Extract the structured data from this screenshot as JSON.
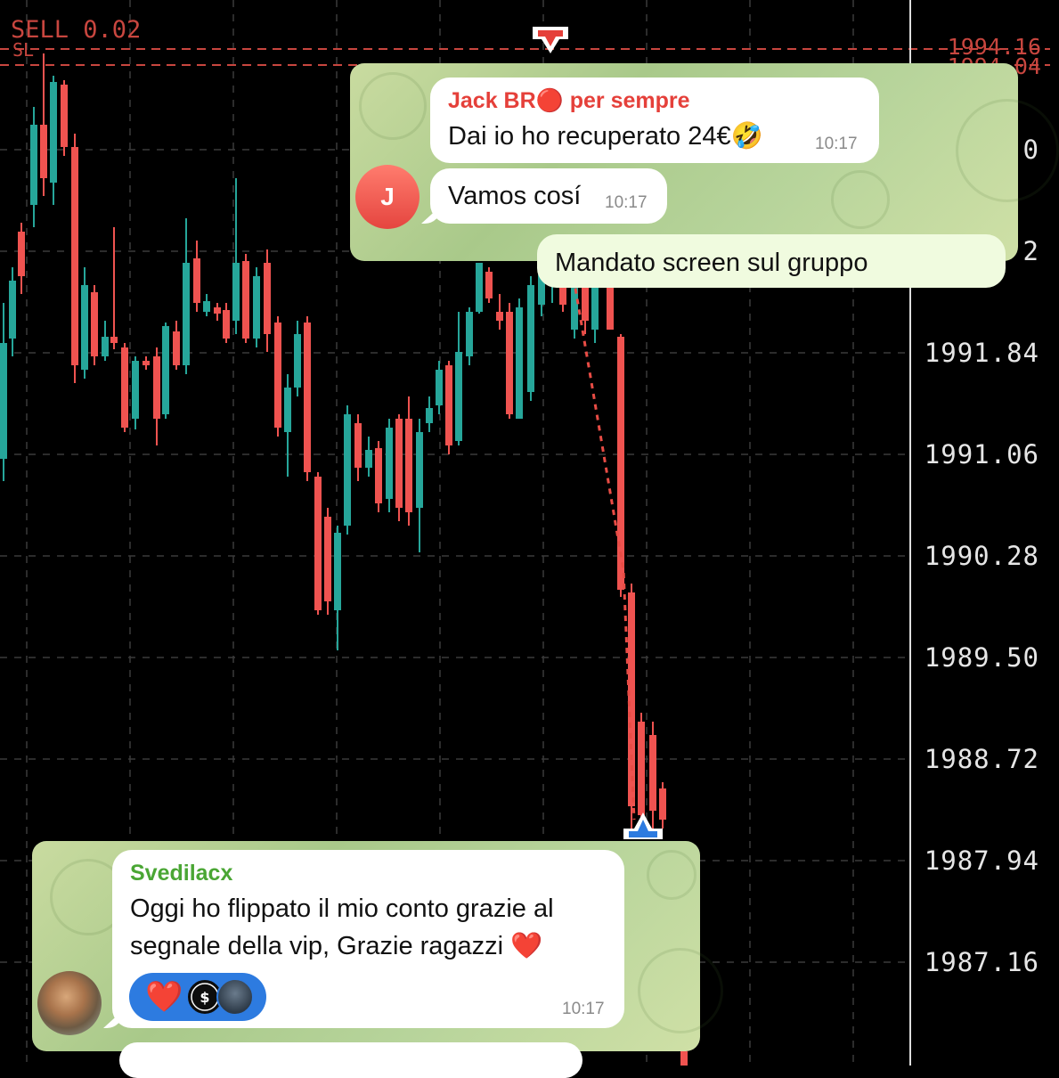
{
  "chart": {
    "price_labels": [
      "1991.84",
      "1991.06",
      "1990.28",
      "1989.50",
      "1988.72",
      "1987.94",
      "1987.16"
    ],
    "partial_price_labels": [
      "0",
      "2"
    ],
    "corner_prices": [
      "1994.16",
      "1994.04"
    ],
    "order_label": "SELL 0.02",
    "sl_label": "SL",
    "colors": {
      "bull": "#26a69a",
      "bear": "#ef5350",
      "grid": "#3a3a3a",
      "order_line": "#c8463f"
    }
  },
  "chart_data": {
    "type": "candlestick",
    "y_tick_labels": [
      "1991.84",
      "1991.06",
      "1990.28",
      "1989.50",
      "1988.72",
      "1987.94",
      "1987.16"
    ],
    "grid": true
  },
  "telegram_top": {
    "message1": {
      "sender": "Jack BR🔴 per sempre",
      "text": "Dai io ho recuperato 24€🤣",
      "time": "10:17"
    },
    "message2": {
      "text": "Vamos cosí",
      "time": "10:17",
      "avatar_letter": "J"
    },
    "message3_partial": "Mandato screen sul gruppo"
  },
  "telegram_bottom": {
    "sender": "Svedilacx",
    "text_line1": "Oggi ho flippato il mio conto grazie al",
    "text_line2": "segnale della vip, Grazie ragazzi ❤️",
    "reaction": "❤️",
    "time": "10:17",
    "colors": {
      "sender": "#4aa634",
      "reaction_pill": "#2d7be0"
    }
  },
  "icons": {
    "sell_arrow": "down-arrow-icon",
    "buy_arrow": "up-arrow-icon",
    "avatar": "avatar"
  }
}
